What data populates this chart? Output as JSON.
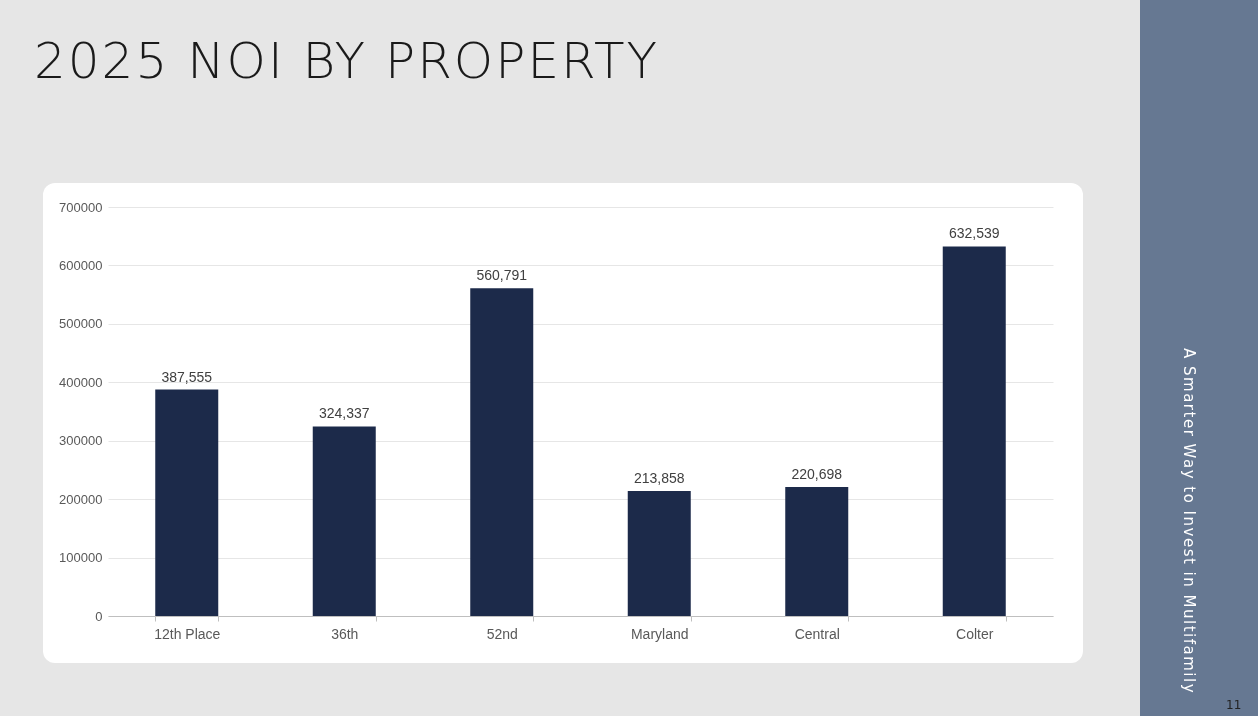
{
  "chart_data": {
    "type": "bar",
    "title": "2025 NOI BY PROPERTY",
    "categories": [
      "12th Place",
      "36th",
      "52nd",
      "Maryland",
      "Central",
      "Colter"
    ],
    "values": [
      387555,
      324337,
      560791,
      213858,
      220698,
      632539
    ],
    "color": "#1c2a4a",
    "ylim": [
      0,
      700000
    ],
    "yticks": [
      0,
      100000,
      200000,
      300000,
      400000,
      500000,
      600000,
      700000
    ],
    "grid": "y",
    "value_labels": [
      "387,555",
      "324,337",
      "560,791",
      "213,858",
      "220,698",
      "632,539"
    ],
    "annotations": [
      "A Smarter Way to Invest in Multifamily",
      "11"
    ]
  }
}
